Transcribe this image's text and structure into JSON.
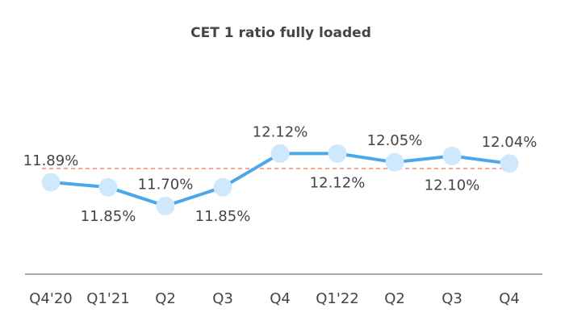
{
  "chart_data": {
    "type": "line",
    "title": "CET 1 ratio fully loaded",
    "categories": [
      "Q4'20",
      "Q1'21",
      "Q2",
      "Q3",
      "Q4",
      "Q1'22",
      "Q2",
      "Q3",
      "Q4"
    ],
    "series": [
      {
        "values": [
          11.89,
          11.85,
          11.7,
          11.85,
          12.12,
          12.12,
          12.05,
          12.1,
          12.04
        ],
        "labels": [
          "11.89%",
          "11.85%",
          "11.70%",
          "11.85%",
          "12.12%",
          "12.12%",
          "12.05%",
          "12.10%",
          "12.04%"
        ],
        "color": "#4aa8ea",
        "marker_color": "#cfe8fb"
      }
    ],
    "reference_line": {
      "value": 12.0,
      "style": "dashed",
      "color": "#f08a7a"
    },
    "label_positions": [
      "above",
      "below",
      "above",
      "below",
      "above",
      "below",
      "above",
      "below",
      "above"
    ],
    "ylim": [
      11.2,
      12.6
    ],
    "grid": false,
    "axis_color": "#8c8c8c"
  }
}
